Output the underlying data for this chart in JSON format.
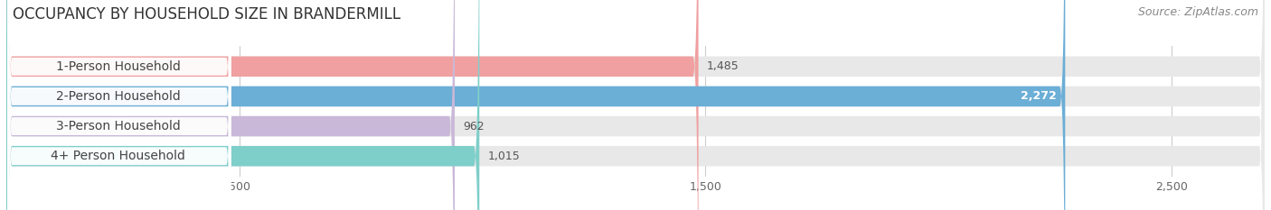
{
  "title": "OCCUPANCY BY HOUSEHOLD SIZE IN BRANDERMILL",
  "source": "Source: ZipAtlas.com",
  "categories": [
    "1-Person Household",
    "2-Person Household",
    "3-Person Household",
    "4+ Person Household"
  ],
  "values": [
    1485,
    2272,
    962,
    1015
  ],
  "bar_colors": [
    "#f0a0a0",
    "#6baed6",
    "#c9b8d8",
    "#7ececa"
  ],
  "label_colors": [
    "#333333",
    "#ffffff",
    "#333333",
    "#333333"
  ],
  "value_colors": [
    "#555555",
    "#ffffff",
    "#555555",
    "#555555"
  ],
  "xlim_data": [
    0,
    2700
  ],
  "xticks": [
    500,
    1500,
    2500
  ],
  "background_color": "#ffffff",
  "bar_bg_color": "#e8e8e8",
  "title_fontsize": 12,
  "source_fontsize": 9,
  "label_fontsize": 10,
  "value_fontsize": 9
}
